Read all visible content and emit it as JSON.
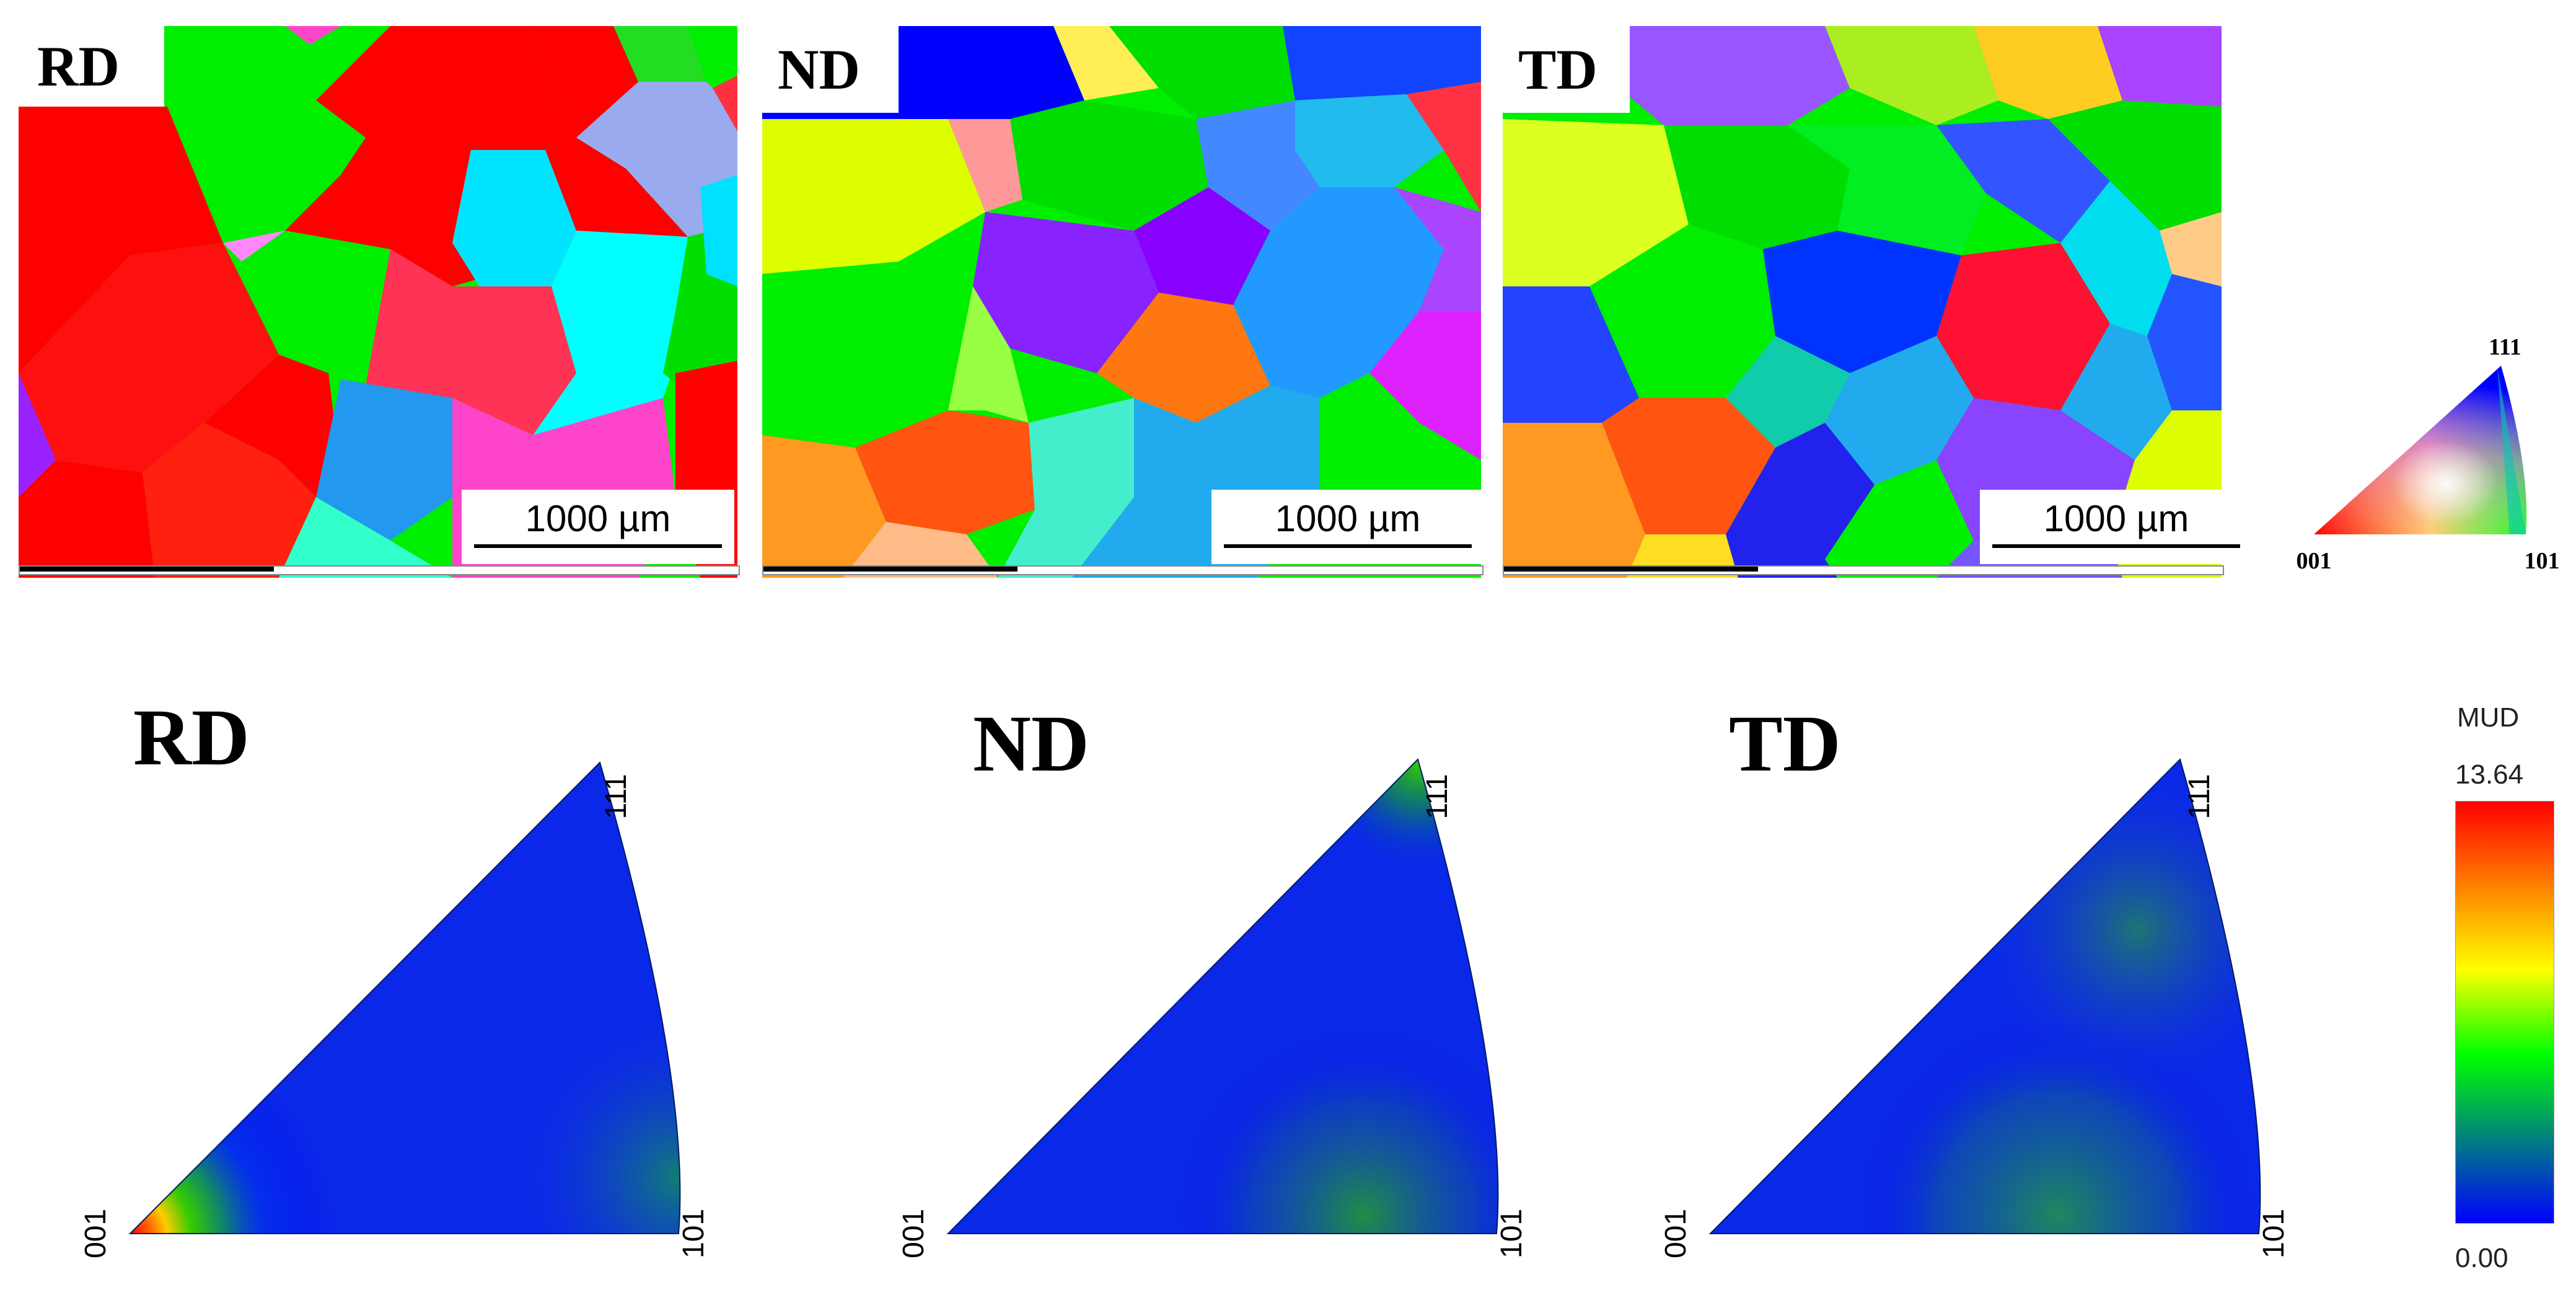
{
  "maps": [
    {
      "label": "RD",
      "scale": "1000 µm"
    },
    {
      "label": "ND",
      "scale": "1000 µm"
    },
    {
      "label": "TD",
      "scale": "1000 µm"
    }
  ],
  "key_triangle": {
    "corner_001": "001",
    "corner_101": "101",
    "corner_111": "111"
  },
  "ipfs": [
    {
      "label": "RD",
      "corner_001": "001",
      "corner_101": "101",
      "corner_111": "111"
    },
    {
      "label": "ND",
      "corner_001": "001",
      "corner_101": "101",
      "corner_111": "111"
    },
    {
      "label": "TD",
      "corner_001": "001",
      "corner_101": "101",
      "corner_111": "111"
    }
  ],
  "colorbar": {
    "title": "MUD",
    "max": "13.64",
    "min": "0.00",
    "colors": [
      "#ff0000",
      "#ff8000",
      "#ffff00",
      "#00ff00",
      "#008080",
      "#0000ff"
    ]
  }
}
